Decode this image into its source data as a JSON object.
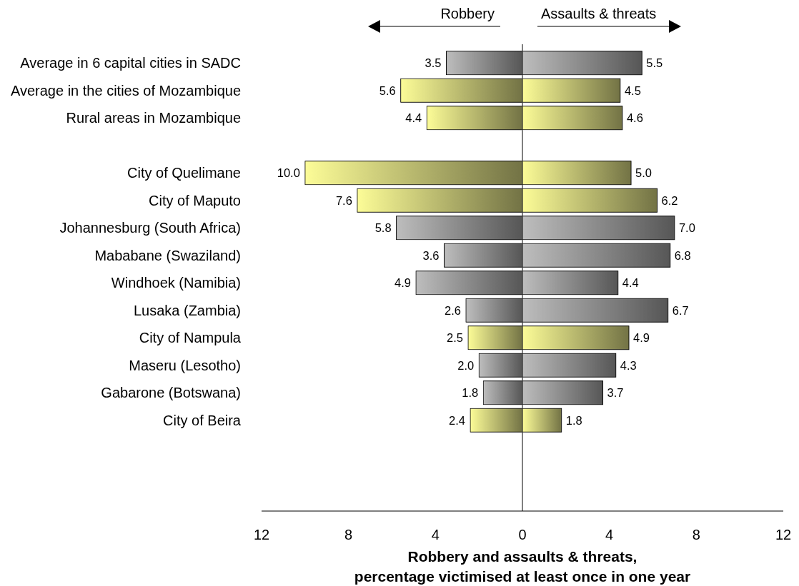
{
  "chart_data": [
    {
      "type": "bar",
      "orientation": "horizontal",
      "legend": "top",
      "categories": [
        "Average in 6 capital cities in SADC",
        "Average in the cities of Mozambique",
        "Rural areas in Mozambique",
        null,
        "City of Quelimane",
        "City of Maputo",
        "Johannesburg (South Africa)",
        "Mababane (Swaziland)",
        "Windhoek (Namibia)",
        "Lusaka (Zambia)",
        "City of Nampula",
        "Maseru (Lesotho)",
        "Gabarone (Botswana)",
        "City of Beira"
      ],
      "series": [
        {
          "name": "Robbery",
          "values": [
            3.5,
            5.6,
            4.4,
            null,
            10.0,
            7.6,
            5.8,
            3.6,
            4.9,
            2.6,
            2.5,
            2.0,
            1.8,
            2.4
          ],
          "colors": [
            "#c0c0c0",
            "#ffff99",
            "#ffff99",
            null,
            "#ffff99",
            "#ffff99",
            "#c0c0c0",
            "#c0c0c0",
            "#c0c0c0",
            "#c0c0c0",
            "#ffff99",
            "#c0c0c0",
            "#c0c0c0",
            "#ffff99"
          ],
          "value_labels": [
            "3.5",
            "5.6",
            "4.4",
            null,
            "10.0",
            "7.6",
            "5.8",
            "3.6",
            "4.9",
            "2.6",
            "2.5",
            "2.0",
            "1.8",
            "2.4"
          ]
        }
      ],
      "xlim": [
        12,
        0
      ],
      "xticks": [
        12,
        8,
        4,
        0
      ],
      "xlabel": "Robbery and assaults & threats,\npercentage victimised at least once in one year"
    },
    {
      "type": "bar",
      "orientation": "horizontal",
      "legend": "top",
      "categories": [
        null,
        null,
        null,
        null,
        null,
        null,
        null,
        null,
        null,
        null,
        null,
        null,
        null,
        null
      ],
      "series": [
        {
          "name": "Assaults & threats",
          "values": [
            5.5,
            4.5,
            4.6,
            null,
            5.0,
            6.2,
            7.0,
            6.8,
            4.4,
            6.7,
            4.9,
            4.3,
            3.7,
            1.8
          ],
          "colors": [
            "#c0c0c0",
            "#ffff99",
            "#ffff99",
            null,
            "#ffff99",
            "#ffff99",
            "#c0c0c0",
            "#c0c0c0",
            "#c0c0c0",
            "#c0c0c0",
            "#ffff99",
            "#c0c0c0",
            "#c0c0c0",
            "#ffff99"
          ],
          "value_labels": [
            "5.5",
            "4.5",
            "4.6",
            null,
            "5.0",
            "6.2",
            "7.0",
            "6.8",
            "4.4",
            "6.7",
            "4.9",
            "4.3",
            "3.7",
            "1.8"
          ]
        }
      ],
      "xlim": [
        0,
        12
      ],
      "xticks": [
        4,
        8,
        12
      ]
    }
  ]
}
